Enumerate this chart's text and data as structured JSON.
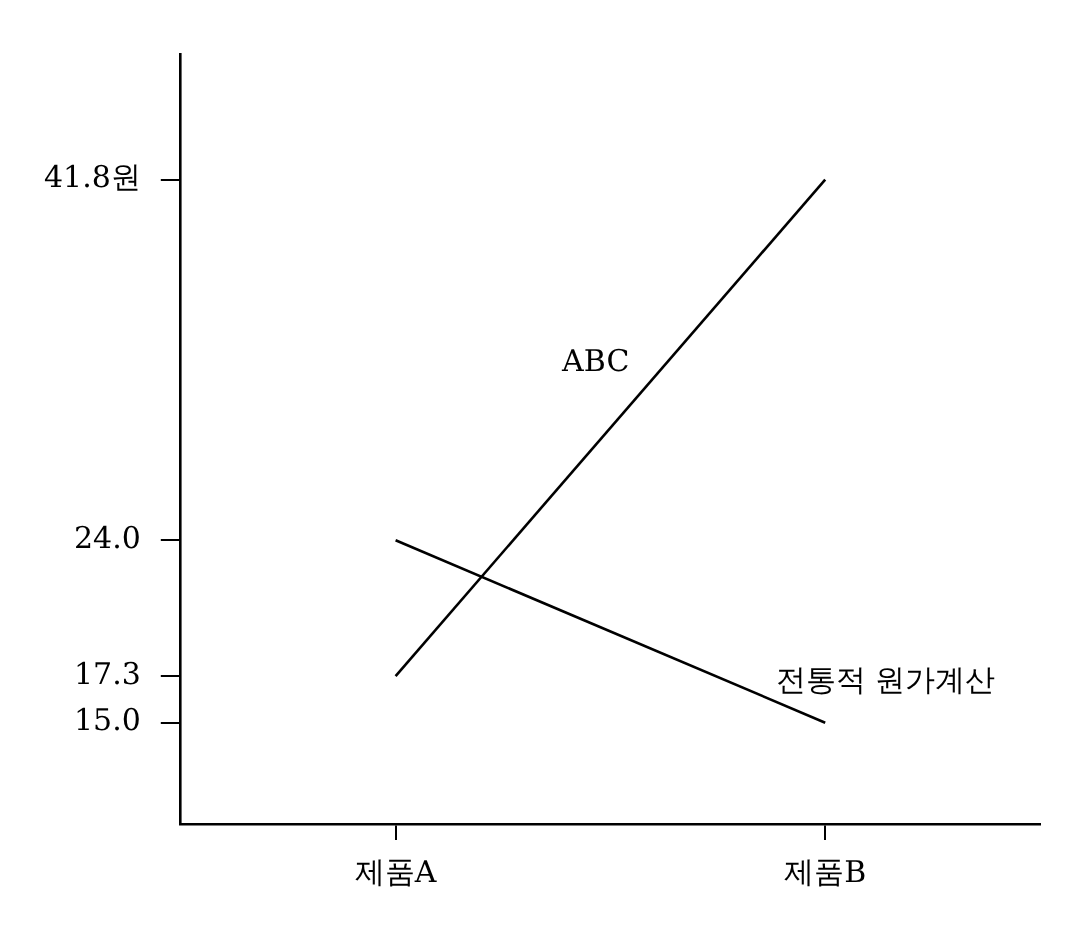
{
  "chart_data": {
    "type": "line",
    "categories": [
      "제품A",
      "제품B"
    ],
    "series": [
      {
        "name": "ABC",
        "color": "#000000",
        "values": [
          17.3,
          41.8
        ]
      },
      {
        "name": "전통적 원가계산",
        "color": "#000000",
        "values": [
          24.0,
          15.0
        ]
      }
    ],
    "ylim": [
      10,
      48
    ],
    "yticks": [
      {
        "value": 15.0,
        "label": "15.0"
      },
      {
        "value": 17.3,
        "label": "17.3"
      },
      {
        "value": 24.0,
        "label": "24.0"
      },
      {
        "value": 41.8,
        "label": "41.8원"
      }
    ],
    "grid": false,
    "legend": false,
    "marker": "none",
    "line_style": "solid"
  }
}
